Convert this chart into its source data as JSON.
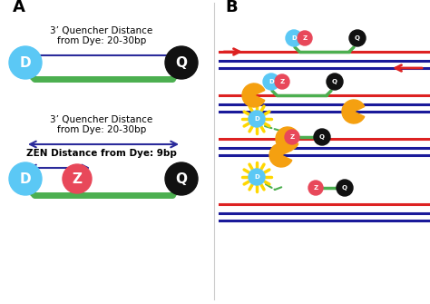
{
  "label_A": "A",
  "label_B": "B",
  "colors": {
    "dye_blue": "#5BC8F5",
    "quencher_black": "#111111",
    "zen_pink": "#E8485A",
    "probe_green": "#4CAF50",
    "arrow_red": "#DD2222",
    "dna_blue": "#1a1a9a",
    "polymerase_orange": "#F5A010",
    "sunburst_yellow": "#FFD700",
    "background": "#ffffff",
    "arrow_blue": "#2B2B9B"
  },
  "panel_A": {
    "top_text1": "3’ Quencher Distance",
    "top_text2": "from Dye: 20-30bp",
    "bottom_text1": "3’ Quencher Distance",
    "bottom_text2": "from Dye: 20-30bp",
    "bottom_text3": "ZEN Distance from Dye: 9bp"
  }
}
